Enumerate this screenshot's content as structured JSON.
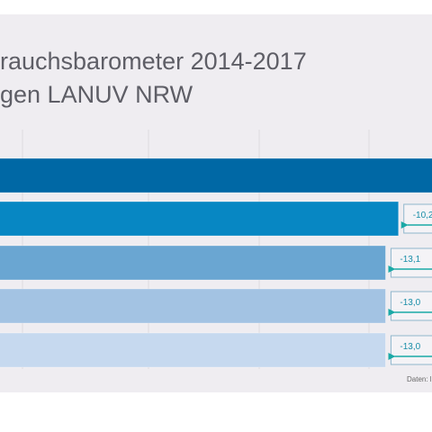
{
  "colors": {
    "bar_1": "#0068a5",
    "bar_2": "#0787c3",
    "bar_3": "#6aa6d2",
    "bar_4": "#a3c3e3",
    "bar_5": "#c6d9ef",
    "arrow": "#1aa9a6",
    "label_text": "#1a8ea8",
    "label_border": "#8fb6cc"
  },
  "chart_data": {
    "type": "bar",
    "orientation": "horizontal",
    "title_lines": [
      "rauchsbarometer 2014-2017",
      "gen LANUV NRW"
    ],
    "source": "Daten: l",
    "grid": true,
    "bars": [
      {
        "relative": 1.0,
        "label": ""
      },
      {
        "relative": 0.898,
        "label": "-10,2"
      },
      {
        "relative": 0.869,
        "label": "-13,1"
      },
      {
        "relative": 0.869,
        "label": "-13,0"
      },
      {
        "relative": 0.869,
        "label": "-13,0"
      }
    ]
  }
}
